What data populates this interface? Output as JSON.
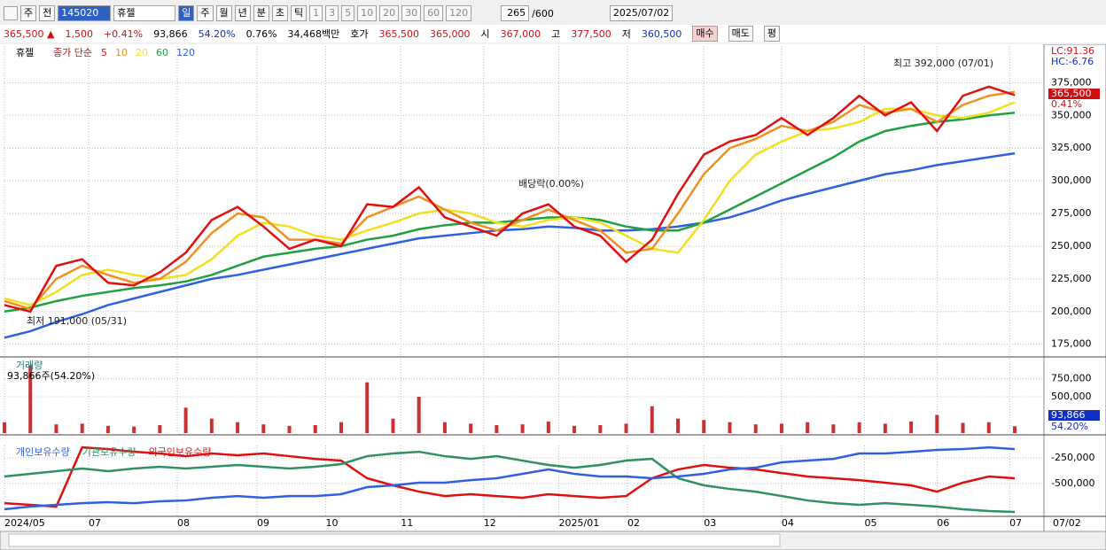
{
  "toolbar": {
    "items": [
      "주",
      "전"
    ],
    "code": "145020",
    "name": "휴젤",
    "periods": [
      "일",
      "주",
      "월",
      "년",
      "분",
      "초",
      "틱"
    ],
    "intervals": [
      "1",
      "3",
      "5",
      "10",
      "20",
      "30",
      "60",
      "120"
    ],
    "count": "265",
    "total": "/600",
    "date": "2025/07/02"
  },
  "quote": {
    "items": [
      {
        "text": "365,500 ▲",
        "color": "#d01010"
      },
      {
        "text": "1,500",
        "color": "#d01010"
      },
      {
        "text": "+0.41%",
        "color": "#d01010"
      },
      {
        "text": "93,866",
        "color": "#000000"
      },
      {
        "text": "54.20%",
        "color": "#1030c0"
      },
      {
        "text": "0.76%",
        "color": "#000000"
      },
      {
        "text": "34,468백만",
        "color": "#000000"
      },
      {
        "text": "호가",
        "color": "#000000"
      },
      {
        "text": "365,500",
        "color": "#d01010"
      },
      {
        "text": "365,000",
        "color": "#d01010"
      },
      {
        "text": "시",
        "color": "#000000"
      },
      {
        "text": "367,000",
        "color": "#d01010"
      },
      {
        "text": "고",
        "color": "#000000"
      },
      {
        "text": "377,500",
        "color": "#d01010"
      },
      {
        "text": "저",
        "color": "#000000"
      },
      {
        "text": "360,500",
        "color": "#1030c0"
      }
    ],
    "buttons": [
      "매수",
      "매도",
      "평"
    ]
  },
  "x_axis": {
    "ticks": [
      {
        "value": 0,
        "label": "2024/05"
      },
      {
        "value": 3.25,
        "label": "07"
      },
      {
        "value": 6.67,
        "label": "08"
      },
      {
        "value": 9.75,
        "label": "09"
      },
      {
        "value": 12.4,
        "label": "10"
      },
      {
        "value": 15.3,
        "label": "11"
      },
      {
        "value": 18.5,
        "label": "12"
      },
      {
        "value": 21.4,
        "label": "2025/01"
      },
      {
        "value": 24.05,
        "label": "02"
      },
      {
        "value": 27,
        "label": "03"
      },
      {
        "value": 30,
        "label": "04"
      },
      {
        "value": 33.2,
        "label": "05"
      },
      {
        "value": 36,
        "label": "06"
      },
      {
        "value": 38.8,
        "label": "07"
      }
    ],
    "end_label": "07/02"
  },
  "chart_data": [
    {
      "type": "line",
      "title": "휴젤",
      "subtitle": "종가 단순",
      "ylim": [
        166000,
        403000
      ],
      "yticks": [
        {
          "value": 175000,
          "label": "175,000"
        },
        {
          "value": 200000,
          "label": "200,000"
        },
        {
          "value": 225000,
          "label": "225,000"
        },
        {
          "value": 250000,
          "label": "250,000"
        },
        {
          "value": 275000,
          "label": "275,000"
        },
        {
          "value": 300000,
          "label": "300,000"
        },
        {
          "value": 325000,
          "label": "325,000"
        },
        {
          "value": 350000,
          "label": "350,000"
        },
        {
          "value": 375000,
          "label": "375,000"
        }
      ],
      "grid": true,
      "annotations": [
        "최고 392,000 (07/01)",
        "최저 191,000 (05/31)",
        "배당락(0.00%)"
      ],
      "right_labels": [
        {
          "text": "LC:91.36",
          "color": "#d01010"
        },
        {
          "text": "HC:-6.76",
          "color": "#1030c0"
        },
        {
          "text": "365,500",
          "color": "#d01010"
        },
        {
          "text": "0.41%",
          "color": "#d01010"
        }
      ],
      "series": [
        {
          "name": "120",
          "color": "#3060e0",
          "values": [
            180000,
            185000,
            192000,
            198000,
            205000,
            210000,
            215000,
            220000,
            225000,
            228000,
            232000,
            236000,
            240000,
            244000,
            248000,
            252000,
            256000,
            258000,
            260000,
            262000,
            263000,
            265000,
            264000,
            262000,
            262000,
            263000,
            265000,
            268000,
            272000,
            278000,
            285000,
            290000,
            295000,
            300000,
            305000,
            308000,
            312000,
            315000,
            318000,
            321000
          ]
        },
        {
          "name": "60",
          "color": "#20a040",
          "values": [
            200000,
            203000,
            208000,
            212000,
            215000,
            218000,
            220000,
            223000,
            228000,
            235000,
            242000,
            245000,
            248000,
            250000,
            255000,
            258000,
            263000,
            266000,
            268000,
            268000,
            270000,
            272000,
            272000,
            270000,
            265000,
            262000,
            262000,
            268000,
            278000,
            288000,
            298000,
            308000,
            318000,
            330000,
            338000,
            342000,
            345000,
            347000,
            350000,
            352000
          ]
        },
        {
          "name": "20",
          "color": "#f0e020",
          "values": [
            210000,
            205000,
            215000,
            228000,
            232000,
            228000,
            225000,
            228000,
            240000,
            258000,
            268000,
            265000,
            258000,
            255000,
            262000,
            268000,
            275000,
            278000,
            275000,
            268000,
            265000,
            270000,
            272000,
            268000,
            258000,
            248000,
            245000,
            270000,
            300000,
            320000,
            330000,
            338000,
            340000,
            345000,
            355000,
            355000,
            350000,
            348000,
            352000,
            360000
          ]
        },
        {
          "name": "10",
          "color": "#f09020",
          "values": [
            208000,
            202000,
            225000,
            235000,
            228000,
            222000,
            225000,
            238000,
            260000,
            275000,
            272000,
            255000,
            255000,
            252000,
            272000,
            280000,
            288000,
            278000,
            268000,
            262000,
            270000,
            278000,
            270000,
            262000,
            245000,
            248000,
            275000,
            305000,
            325000,
            332000,
            342000,
            338000,
            345000,
            358000,
            352000,
            355000,
            345000,
            358000,
            365000,
            368000
          ]
        },
        {
          "name": "5",
          "color": "#e01010",
          "values": [
            205000,
            200000,
            235000,
            240000,
            222000,
            220000,
            230000,
            245000,
            270000,
            280000,
            265000,
            248000,
            255000,
            250000,
            282000,
            280000,
            295000,
            272000,
            265000,
            258000,
            275000,
            282000,
            265000,
            258000,
            238000,
            255000,
            290000,
            320000,
            330000,
            335000,
            348000,
            335000,
            348000,
            365000,
            350000,
            360000,
            338000,
            365000,
            372000,
            365500
          ]
        }
      ]
    },
    {
      "type": "bar",
      "title": "거래량",
      "subtitle": "93,866주(54.20%)",
      "ylim": [
        0,
        1025000
      ],
      "yticks": [
        {
          "value": 500000,
          "label": "500,000"
        },
        {
          "value": 750000,
          "label": "750,000"
        }
      ],
      "grid": true,
      "color": "#c83232",
      "right_labels": [
        {
          "text": "93,866",
          "color": "#1030c0"
        },
        {
          "text": "54.20%",
          "color": "#1030c0"
        }
      ],
      "values": [
        150000,
        937000,
        120000,
        130000,
        100000,
        90000,
        110000,
        350000,
        200000,
        150000,
        120000,
        100000,
        110000,
        150000,
        700000,
        200000,
        500000,
        150000,
        130000,
        110000,
        120000,
        160000,
        100000,
        110000,
        130000,
        370000,
        200000,
        180000,
        150000,
        120000,
        130000,
        150000,
        120000,
        150000,
        130000,
        160000,
        250000,
        140000,
        150000,
        93866
      ]
    },
    {
      "type": "line",
      "ylim": [
        -810000,
        -129000
      ],
      "yticks": [
        {
          "value": -500000,
          "label": "-500,000"
        },
        {
          "value": -250000,
          "label": "-250,000"
        }
      ],
      "grid": true,
      "series": [
        {
          "name": "외국인보유수량",
          "color": "#e01010",
          "values": [
            -690000,
            -707000,
            -724000,
            -147000,
            -164000,
            -190000,
            -207000,
            -233000,
            -207000,
            -224000,
            -207000,
            -233000,
            -259000,
            -276000,
            -448000,
            -517000,
            -578000,
            -621000,
            -603000,
            -621000,
            -638000,
            -603000,
            -621000,
            -638000,
            -621000,
            -448000,
            -362000,
            -319000,
            -345000,
            -362000,
            -397000,
            -431000,
            -448000,
            -466000,
            -491000,
            -517000,
            -578000,
            -491000,
            -431000,
            -448000
          ]
        },
        {
          "name": "기관보유수량",
          "color": "#309060",
          "values": [
            -431000,
            -405000,
            -379000,
            -353000,
            -379000,
            -353000,
            -336000,
            -353000,
            -336000,
            -319000,
            -336000,
            -353000,
            -336000,
            -310000,
            -233000,
            -207000,
            -190000,
            -233000,
            -259000,
            -233000,
            -276000,
            -319000,
            -345000,
            -319000,
            -276000,
            -259000,
            -448000,
            -517000,
            -552000,
            -578000,
            -621000,
            -664000,
            -690000,
            -707000,
            -690000,
            -707000,
            -724000,
            -750000,
            -767000,
            -776000
          ]
        },
        {
          "name": "개인보유수량",
          "color": "#3060e0",
          "values": [
            -750000,
            -724000,
            -707000,
            -690000,
            -681000,
            -690000,
            -672000,
            -664000,
            -638000,
            -621000,
            -638000,
            -621000,
            -621000,
            -603000,
            -534000,
            -517000,
            -491000,
            -491000,
            -466000,
            -448000,
            -405000,
            -362000,
            -405000,
            -431000,
            -431000,
            -448000,
            -431000,
            -405000,
            -362000,
            -345000,
            -293000,
            -276000,
            -259000,
            -207000,
            -207000,
            -190000,
            -172000,
            -164000,
            -147000,
            -164000
          ]
        }
      ]
    }
  ]
}
